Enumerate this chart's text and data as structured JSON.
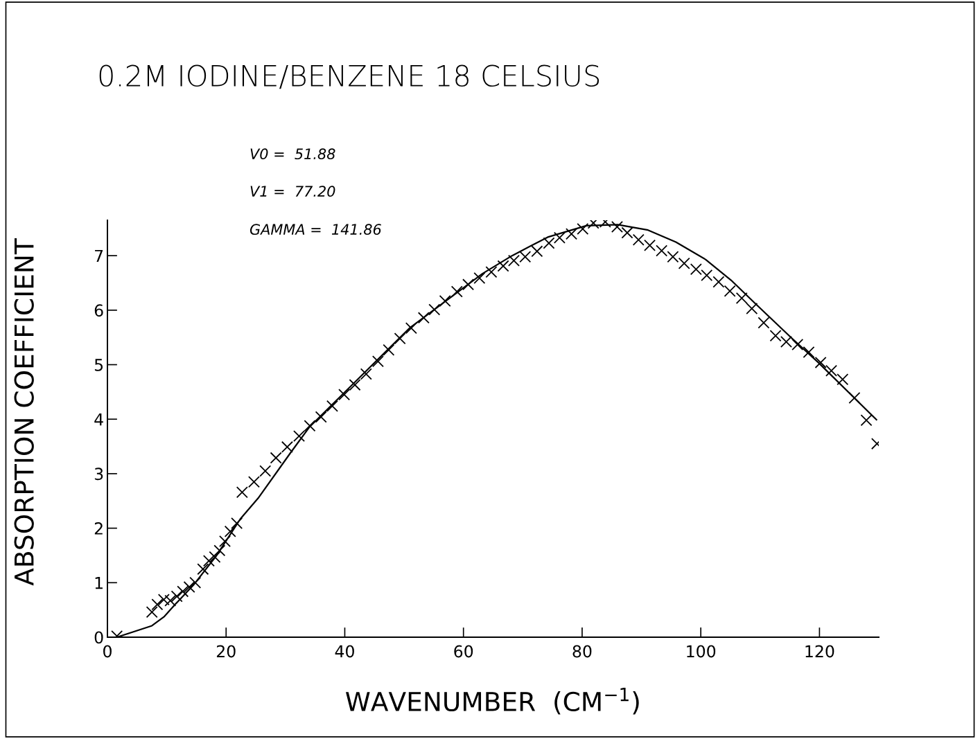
{
  "chart_data": {
    "type": "scatter",
    "title": "0.2M IODINE/BENZENE 18 CELSIUS",
    "xlabel": "WAVENUMBER  (CM$^{−1}$)",
    "ylabel": "ABSORPTION COEFFICIENT",
    "annotations": [
      "V0 =  51.88",
      "V1 =  77.20",
      "GAMMA =  141.86"
    ],
    "xlim": [
      0,
      130
    ],
    "ylim": [
      0,
      7.65
    ],
    "xticks": [
      0,
      20,
      40,
      60,
      80,
      100,
      120
    ],
    "yticks": [
      0,
      1,
      2,
      3,
      4,
      5,
      6,
      7
    ],
    "grid": false,
    "legend": false,
    "series": [
      {
        "marker": "cross",
        "color": "#000000",
        "x": [
          1.6,
          7.5,
          8.4,
          9.5,
          10.6,
          11.7,
          12.7,
          13.8,
          14.8,
          16.1,
          17.1,
          18.1,
          18.9,
          19.8,
          20.7,
          21.8,
          22.7,
          24.7,
          26.6,
          28.4,
          30.3,
          32.3,
          34.1,
          36.0,
          37.9,
          39.9,
          41.7,
          43.6,
          45.6,
          47.4,
          49.3,
          51.2,
          53.3,
          55.1,
          56.9,
          58.9,
          60.8,
          62.7,
          64.7,
          66.7,
          68.5,
          70.4,
          72.4,
          74.4,
          76.2,
          78.2,
          80.1,
          81.9,
          83.9,
          85.9,
          87.6,
          89.5,
          91.4,
          93.4,
          95.3,
          97.2,
          99.2,
          101.0,
          103.0,
          104.9,
          106.9,
          108.6,
          110.6,
          112.6,
          114.4,
          116.3,
          118.2,
          120.2,
          122.0,
          123.9,
          125.9,
          127.9,
          129.7
        ],
        "values": [
          0.02,
          0.46,
          0.6,
          0.69,
          0.67,
          0.75,
          0.84,
          0.92,
          1.0,
          1.25,
          1.4,
          1.47,
          1.59,
          1.76,
          1.94,
          2.09,
          2.66,
          2.85,
          3.05,
          3.29,
          3.49,
          3.69,
          3.88,
          4.04,
          4.24,
          4.45,
          4.63,
          4.83,
          5.06,
          5.27,
          5.48,
          5.67,
          5.86,
          6.01,
          6.17,
          6.34,
          6.47,
          6.59,
          6.7,
          6.81,
          6.91,
          6.98,
          7.08,
          7.23,
          7.33,
          7.4,
          7.49,
          7.6,
          7.62,
          7.53,
          7.42,
          7.29,
          7.19,
          7.09,
          6.98,
          6.86,
          6.75,
          6.64,
          6.52,
          6.35,
          6.22,
          6.03,
          5.77,
          5.53,
          5.42,
          5.37,
          5.23,
          5.04,
          4.89,
          4.73,
          4.39,
          3.98,
          3.55
        ]
      },
      {
        "type": "line",
        "marker": "none",
        "line_style": "solid",
        "color": "#000000",
        "x": [
          1.6,
          7.5,
          9.6,
          11.4,
          14.6,
          18.4,
          22.4,
          25.4,
          30.9,
          34.0,
          41.7,
          51.0,
          63.2,
          68.2,
          74.2,
          80.7,
          86.0,
          91.1,
          95.8,
          100.8,
          105.1,
          109.3,
          115.2,
          119.8,
          129.6
        ],
        "values": [
          0.0,
          0.21,
          0.38,
          0.6,
          0.97,
          1.5,
          2.17,
          2.55,
          3.39,
          3.85,
          4.68,
          5.68,
          6.67,
          7.0,
          7.34,
          7.55,
          7.57,
          7.47,
          7.25,
          6.93,
          6.55,
          6.11,
          5.5,
          5.04,
          3.99
        ]
      }
    ]
  }
}
